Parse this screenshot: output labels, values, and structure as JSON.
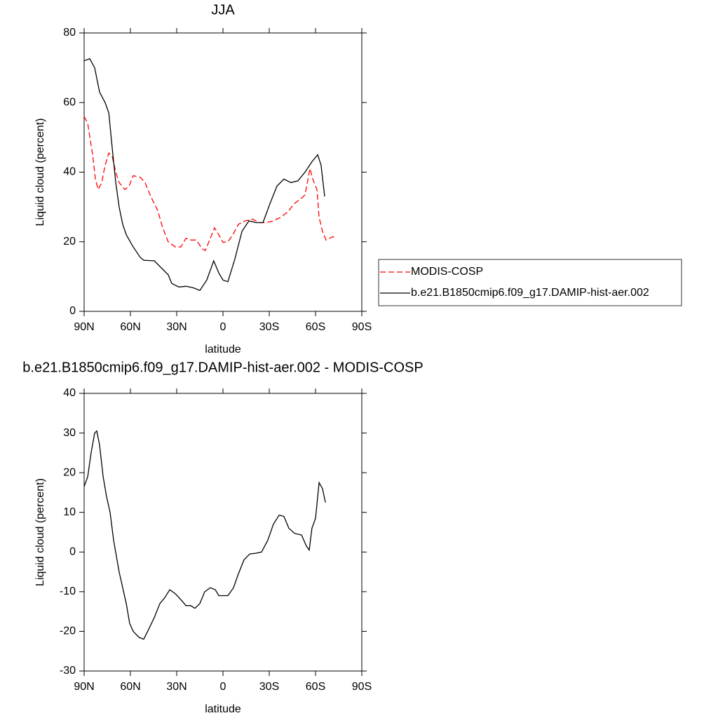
{
  "chart_data": [
    {
      "type": "line",
      "title": "JJA",
      "xlabel": "latitude",
      "ylabel": "Liquid cloud (percent)",
      "xlim": [
        90,
        -90
      ],
      "xticks": [
        {
          "value": 90,
          "label": "90N"
        },
        {
          "value": 60,
          "label": "60N"
        },
        {
          "value": 30,
          "label": "30N"
        },
        0,
        {
          "value": -30,
          "label": "30S"
        },
        {
          "value": -60,
          "label": "60S"
        },
        {
          "value": -90,
          "label": "90S"
        }
      ],
      "ylim": [
        0,
        80
      ],
      "yticks": [
        0,
        20,
        40,
        60,
        80
      ],
      "legend": "right",
      "series": [
        {
          "name": "MODIS-COSP",
          "color": "#ff0000",
          "linestyle": "dashed",
          "x": [
            90,
            87.7,
            84.5,
            82.7,
            80.9,
            78.6,
            76.4,
            74,
            71.8,
            69.5,
            67.3,
            63.6,
            60.9,
            58.2,
            53.6,
            50.5,
            46.8,
            42.3,
            39.1,
            35.5,
            30.9,
            27.3,
            24,
            20.9,
            17.3,
            13.6,
            11.4,
            8.2,
            5.5,
            2.7,
            0,
            -3.2,
            -6.4,
            -10,
            -14.5,
            -19.1,
            -23.6,
            -28.2,
            -32.7,
            -37.3,
            -41.8,
            -46.4,
            -50.9,
            -53.2,
            -56.4,
            -58.2,
            -60.9,
            -62.3,
            -64.5,
            -66.8,
            -69.1,
            -71.4,
            -72.7
          ],
          "values": [
            56,
            54,
            45,
            38,
            35,
            37,
            42,
            45.5,
            44.5,
            40,
            37,
            35,
            36,
            39,
            38.5,
            37,
            33,
            29,
            24,
            20,
            18.5,
            18.5,
            21,
            20.5,
            20.5,
            18,
            17.5,
            21,
            24,
            22,
            19.8,
            20,
            22,
            25,
            26,
            26.5,
            25.5,
            25.5,
            26,
            27,
            28.5,
            31,
            32.5,
            33.5,
            41,
            38,
            35,
            27,
            23,
            20.5,
            21,
            21.5,
            20.5
          ]
        },
        {
          "name": "b.e21.B1850cmip6.f09_g17.DAMIP-hist-aer.002",
          "color": "#000000",
          "linestyle": "solid",
          "x": [
            90,
            86.4,
            83.2,
            80,
            76.4,
            74,
            71.8,
            69.5,
            67.3,
            65,
            62.7,
            58.2,
            53.6,
            51.4,
            44.5,
            40,
            35.5,
            33.2,
            28.6,
            24,
            19.5,
            15,
            10.5,
            6,
            2.7,
            0,
            -3.2,
            -7.7,
            -12.3,
            -16.8,
            -21.4,
            -25.9,
            -30.5,
            -35,
            -39.5,
            -44,
            -48.6,
            -53.2,
            -57.7,
            -61.4,
            -63.6,
            -65.9
          ],
          "values": [
            72,
            72.6,
            70,
            63,
            60,
            57,
            47,
            37,
            30,
            25,
            22,
            18.5,
            15.5,
            14.7,
            14.5,
            12.5,
            10.5,
            8,
            7,
            7.2,
            6.8,
            6,
            9,
            14.5,
            11,
            9,
            8.5,
            15,
            23,
            26,
            25.5,
            25.5,
            31,
            36,
            38,
            37,
            37.5,
            40,
            43,
            45,
            42,
            33
          ]
        }
      ]
    },
    {
      "type": "line",
      "title": "b.e21.B1850cmip6.f09_g17.DAMIP-hist-aer.002 - MODIS-COSP",
      "xlabel": "latitude",
      "ylabel": "Liquid cloud (percent)",
      "xlim": [
        90,
        -90
      ],
      "xticks": [
        {
          "value": 90,
          "label": "90N"
        },
        {
          "value": 60,
          "label": "60N"
        },
        {
          "value": 30,
          "label": "30N"
        },
        0,
        {
          "value": -30,
          "label": "30S"
        },
        {
          "value": -60,
          "label": "60S"
        },
        {
          "value": -90,
          "label": "90S"
        }
      ],
      "ylim": [
        -30,
        40
      ],
      "yticks": [
        -30,
        -20,
        -10,
        0,
        10,
        20,
        30,
        40
      ],
      "series": [
        {
          "color": "#000000",
          "linestyle": "solid",
          "x": [
            90,
            87.7,
            85.5,
            83.2,
            81.8,
            80,
            77.7,
            75.5,
            73.2,
            70.9,
            67.3,
            62.7,
            60.5,
            58.2,
            54.5,
            51.4,
            48.2,
            44.5,
            40.9,
            37.7,
            34.5,
            30.9,
            27.3,
            24,
            20.9,
            18.2,
            15,
            11.8,
            8.2,
            5,
            2.7,
            0,
            -3.2,
            -6.8,
            -10,
            -13.6,
            -17.3,
            -21.4,
            -25,
            -29.1,
            -32.7,
            -36.4,
            -39.5,
            -42.7,
            -46.4,
            -50.9,
            -54.1,
            -55.9,
            -57.7,
            -60,
            -62.3,
            -64.5,
            -66.4
          ],
          "values": [
            16.5,
            19,
            25,
            30,
            30.5,
            27,
            19,
            14,
            10,
            3,
            -5,
            -13,
            -18,
            -20,
            -21.5,
            -22,
            -19.5,
            -16.5,
            -13,
            -11.5,
            -9.5,
            -10.5,
            -12,
            -13.5,
            -13.5,
            -14.2,
            -13,
            -10,
            -9,
            -9.5,
            -11,
            -11,
            -11,
            -9,
            -5.5,
            -2,
            -0.5,
            -0.3,
            0,
            3,
            7,
            9.3,
            9,
            6,
            4.7,
            4.3,
            1.5,
            0.5,
            6,
            8.5,
            17.5,
            16,
            12.5
          ]
        }
      ]
    }
  ]
}
